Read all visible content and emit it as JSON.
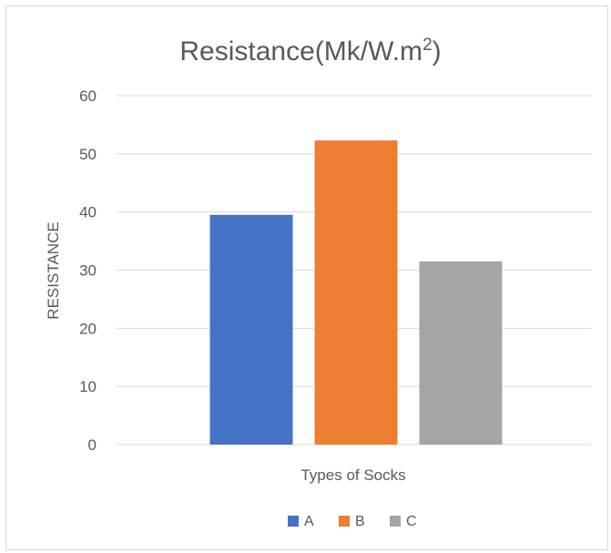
{
  "chart_data": {
    "type": "bar",
    "title": "Resistance(Mk/W.m",
    "title_superscript": "2",
    "title_suffix": ")",
    "xlabel": "Types of Socks",
    "ylabel": "RESISTANCE",
    "ylim": [
      0,
      60
    ],
    "yticks": [
      0,
      10,
      20,
      30,
      40,
      50,
      60
    ],
    "grid": true,
    "legend_position": "bottom",
    "series": [
      {
        "name": "A",
        "value": 39.5,
        "color": "#4472C4"
      },
      {
        "name": "B",
        "value": 52.3,
        "color": "#ED7D31"
      },
      {
        "name": "C",
        "value": 31.5,
        "color": "#A5A5A5"
      }
    ]
  }
}
